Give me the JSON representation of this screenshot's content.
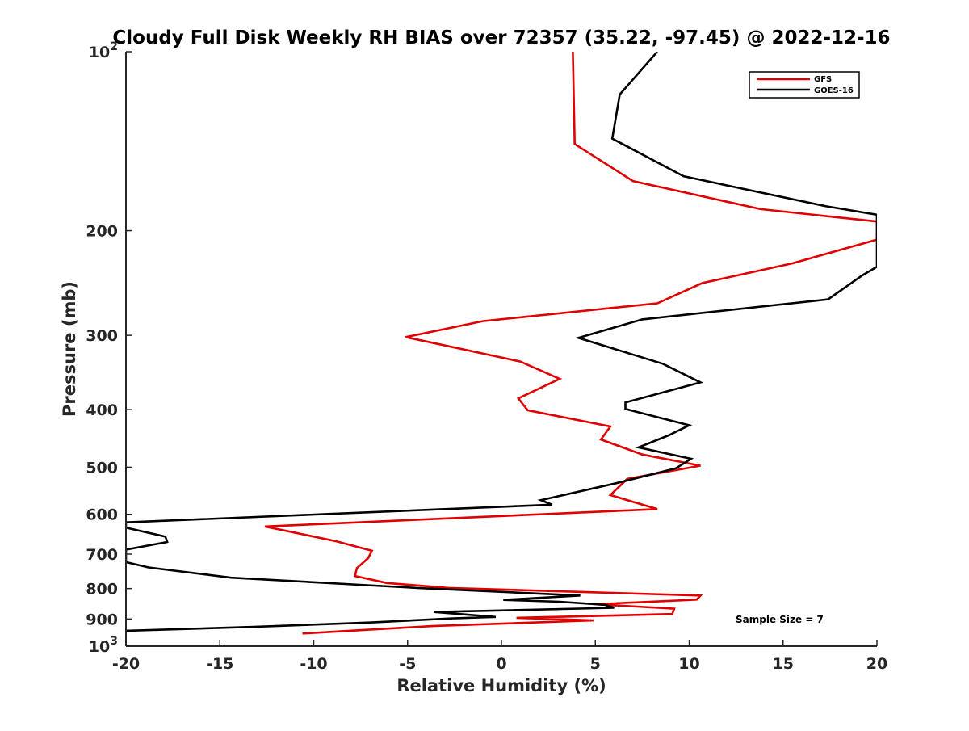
{
  "chart_data": {
    "type": "line",
    "title": "Cloudy Full Disk Weekly RH BIAS over 72357 (35.22, -97.45) @ 2022-12-16",
    "xlabel": "Relative Humidity (%)",
    "ylabel": "Pressure (mb)",
    "xlim": [
      -20,
      20
    ],
    "ylim": [
      100,
      1000
    ],
    "y_scale": "log",
    "y_direction": "reversed",
    "x_ticks": [
      -20,
      -15,
      -10,
      -5,
      0,
      5,
      10,
      15,
      20
    ],
    "x_tick_labels": [
      "-20",
      "-15",
      "-10",
      "-5",
      "0",
      "5",
      "10",
      "15",
      "20"
    ],
    "y_ticks": [
      100,
      200,
      300,
      400,
      500,
      600,
      700,
      800,
      900,
      1000
    ],
    "y_tick_labels": [
      "10^2",
      "200",
      "300",
      "400",
      "500",
      "600",
      "700",
      "800",
      "900",
      "10^3"
    ],
    "grid": false,
    "legend_position": "top-right",
    "annotation": "Sample Size = 7",
    "series": [
      {
        "name": "GFS",
        "color": "#e00000",
        "points": [
          [
            3.8,
            100
          ],
          [
            3.9,
            143
          ],
          [
            7.0,
            165
          ],
          [
            13.8,
            184
          ],
          [
            20.0,
            193
          ],
          [
            20.0,
            207
          ],
          [
            15.5,
            227
          ],
          [
            10.7,
            245
          ],
          [
            8.3,
            265
          ],
          [
            -1.0,
            284
          ],
          [
            -5.1,
            302
          ],
          [
            1.0,
            332
          ],
          [
            3.1,
            355
          ],
          [
            0.9,
            383
          ],
          [
            1.4,
            401
          ],
          [
            5.8,
            427
          ],
          [
            5.3,
            449
          ],
          [
            7.5,
            476
          ],
          [
            10.6,
            497
          ],
          [
            6.7,
            523
          ],
          [
            5.8,
            557
          ],
          [
            8.3,
            588
          ],
          [
            -12.6,
            629
          ],
          [
            -8.8,
            666
          ],
          [
            -6.9,
            691
          ],
          [
            -7.1,
            711
          ],
          [
            -7.7,
            739
          ],
          [
            -7.8,
            762
          ],
          [
            -6.1,
            783
          ],
          [
            -2.8,
            798
          ],
          [
            10.6,
            822
          ],
          [
            10.4,
            835
          ],
          [
            5.0,
            850
          ],
          [
            9.2,
            865
          ],
          [
            9.1,
            883
          ],
          [
            0.8,
            896
          ],
          [
            4.9,
            905
          ],
          [
            -3.7,
            925
          ],
          [
            -10.6,
            952
          ]
        ]
      },
      {
        "name": "GOES-16",
        "color": "#000000",
        "points": [
          [
            8.3,
            100
          ],
          [
            6.3,
            118
          ],
          [
            5.9,
            140
          ],
          [
            9.7,
            162
          ],
          [
            17.3,
            182
          ],
          [
            20.0,
            188
          ],
          [
            20.0,
            230
          ],
          [
            19.2,
            238
          ],
          [
            17.4,
            261
          ],
          [
            7.5,
            282
          ],
          [
            4.1,
            303
          ],
          [
            8.6,
            335
          ],
          [
            10.6,
            360
          ],
          [
            6.6,
            389
          ],
          [
            6.6,
            399
          ],
          [
            10.0,
            425
          ],
          [
            8.9,
            442
          ],
          [
            7.3,
            463
          ],
          [
            10.1,
            484
          ],
          [
            9.3,
            502
          ],
          [
            6.1,
            532
          ],
          [
            2.1,
            568
          ],
          [
            2.7,
            578
          ],
          [
            -20.0,
            619
          ],
          [
            -20.0,
            632
          ],
          [
            -17.9,
            654
          ],
          [
            -17.8,
            668
          ],
          [
            -20.0,
            688
          ],
          [
            -20.0,
            722
          ],
          [
            -18.8,
            737
          ],
          [
            -14.4,
            767
          ],
          [
            -4.5,
            798
          ],
          [
            4.2,
            822
          ],
          [
            0.1,
            836
          ],
          [
            3.1,
            842
          ],
          [
            5.5,
            852
          ],
          [
            6.0,
            862
          ],
          [
            -3.6,
            876
          ],
          [
            -0.3,
            893
          ],
          [
            -2.6,
            898
          ],
          [
            -6.9,
            912
          ],
          [
            -13.2,
            928
          ],
          [
            -20.0,
            942
          ]
        ]
      }
    ]
  }
}
